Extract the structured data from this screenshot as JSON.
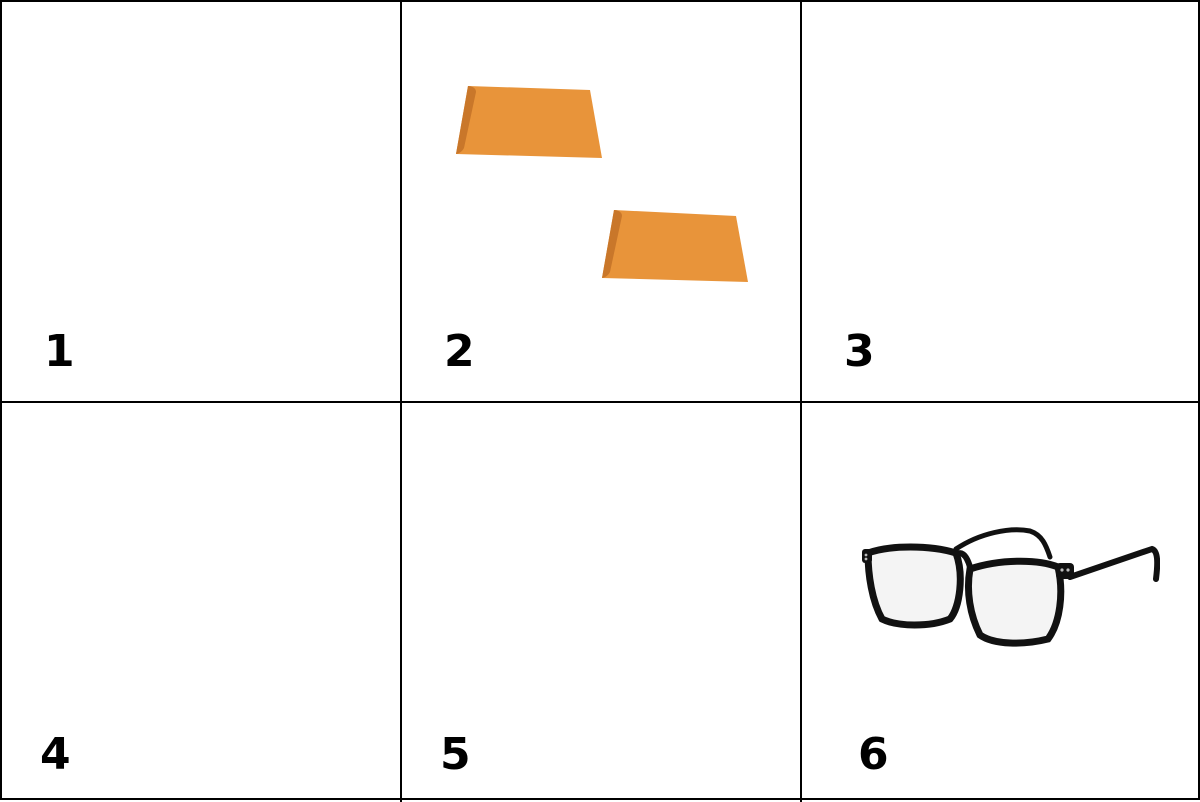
{
  "panels": [
    {
      "label": "1",
      "content": "empty"
    },
    {
      "label": "2",
      "content": "envelope-icon"
    },
    {
      "label": "3",
      "content": "empty"
    },
    {
      "label": "4",
      "content": "empty"
    },
    {
      "label": "5",
      "content": "empty"
    },
    {
      "label": "6",
      "content": "glasses-icon"
    }
  ],
  "colors": {
    "envelope_orange": "#E8943A",
    "envelope_shadow": "#C9772A",
    "grid_line": "#000000",
    "frame_black": "#111111"
  }
}
